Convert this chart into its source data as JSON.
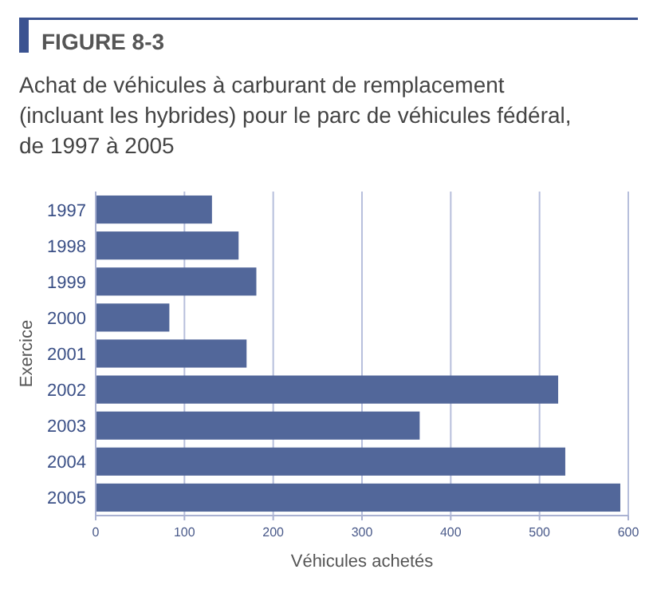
{
  "chart_data": {
    "type": "bar",
    "orientation": "horizontal",
    "title": "FIGURE 8-3",
    "subtitle": "Achat de véhicules à carburant de remplacement\n(incluant les hybrides) pour le parc de véhicules fédéral,\nde 1997 à 2005",
    "xlabel": "Véhicules achetés",
    "ylabel": "Exercice",
    "categories": [
      "1997",
      "1998",
      "1999",
      "2000",
      "2001",
      "2002",
      "2003",
      "2004",
      "2005"
    ],
    "values": [
      131,
      161,
      181,
      83,
      170,
      521,
      365,
      529,
      591
    ],
    "color": "#52679a",
    "xlim": [
      0,
      600
    ],
    "xticks": [
      0,
      100,
      200,
      300,
      400,
      500,
      600
    ],
    "grid": "x"
  }
}
